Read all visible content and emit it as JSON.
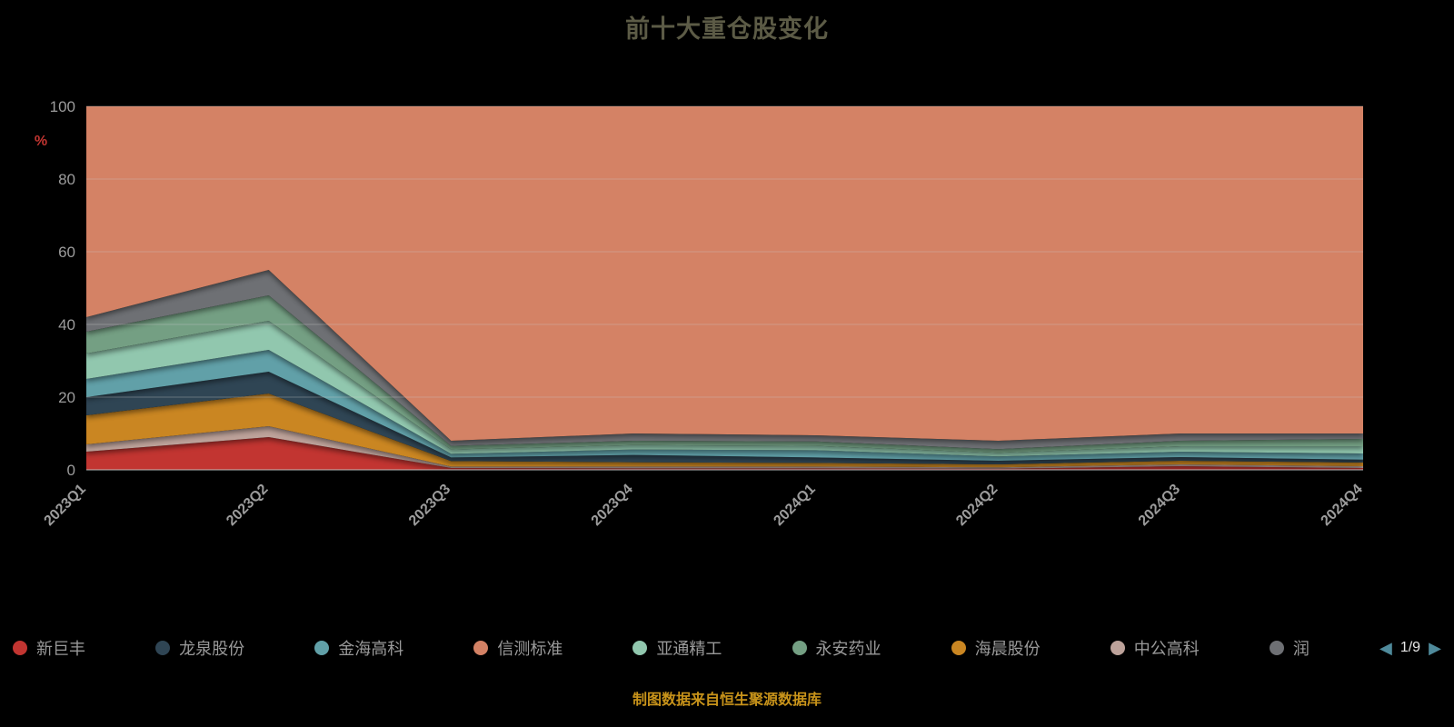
{
  "title": "前十大重仓股变化",
  "chart_data": {
    "type": "area",
    "stacked": true,
    "normalized_total": 100,
    "title": "前十大重仓股变化",
    "xlabel": "",
    "ylabel": "%",
    "ylabel_color": "#c23531",
    "ylim": [
      0,
      100
    ],
    "yticks": [
      0,
      20,
      40,
      60,
      80,
      100
    ],
    "grid": true,
    "categories": [
      "2023Q1",
      "2023Q2",
      "2023Q3",
      "2023Q4",
      "2024Q1",
      "2024Q2",
      "2024Q3",
      "2024Q4"
    ],
    "series": [
      {
        "name": "新巨丰",
        "color": "#c23531",
        "values": [
          5,
          9,
          0.5,
          0.4,
          0.4,
          0.3,
          1,
          0.5
        ]
      },
      {
        "name": "中公高科",
        "color": "#bda29a",
        "values": [
          2,
          3,
          0.4,
          0.5,
          0.5,
          0.4,
          0.5,
          0.5
        ]
      },
      {
        "name": "海晨股份",
        "color": "#ca8622",
        "values": [
          8,
          9,
          1.5,
          1.2,
          1,
          0.8,
          1,
          1
        ]
      },
      {
        "name": "龙泉股份",
        "color": "#2f4554",
        "values": [
          5,
          6,
          1,
          2,
          1.5,
          1,
          1,
          0.8
        ]
      },
      {
        "name": "金海高科",
        "color": "#61a0a8",
        "values": [
          5,
          6,
          1,
          1.5,
          2,
          1.2,
          1.5,
          1.7
        ]
      },
      {
        "name": "亚通精工",
        "color": "#91c7ae",
        "values": [
          7,
          8,
          1.2,
          1.2,
          1.2,
          1,
          1.5,
          2
        ]
      },
      {
        "name": "永安药业",
        "color": "#749f83",
        "values": [
          6,
          7,
          1,
          1.2,
          1.2,
          1,
          1.5,
          2
        ]
      },
      {
        "name": "润",
        "color": "#6e7074",
        "values": [
          4,
          7,
          1.4,
          2,
          1.7,
          2.3,
          2,
          1.5
        ]
      },
      {
        "name": "信测标准",
        "color": "#d48265",
        "values": [
          58,
          45,
          92,
          90,
          90.5,
          92,
          90,
          90
        ]
      }
    ],
    "axis_label_color": "#9c9c9c",
    "gridline_color": "#cccccc"
  },
  "legend": {
    "items": [
      {
        "label": "新巨丰",
        "color": "#c23531"
      },
      {
        "label": "龙泉股份",
        "color": "#2f4554"
      },
      {
        "label": "金海高科",
        "color": "#61a0a8"
      },
      {
        "label": "信测标准",
        "color": "#d48265"
      },
      {
        "label": "亚通精工",
        "color": "#91c7ae"
      },
      {
        "label": "永安药业",
        "color": "#749f83"
      },
      {
        "label": "海晨股份",
        "color": "#ca8622"
      },
      {
        "label": "中公高科",
        "color": "#bda29a"
      },
      {
        "label": "润",
        "color": "#6e7074"
      }
    ],
    "pagination": {
      "label": "1/9",
      "prev_icon": "◀",
      "next_icon": "▶"
    }
  },
  "footer": {
    "source_note": "制图数据来自恒生聚源数据库"
  }
}
